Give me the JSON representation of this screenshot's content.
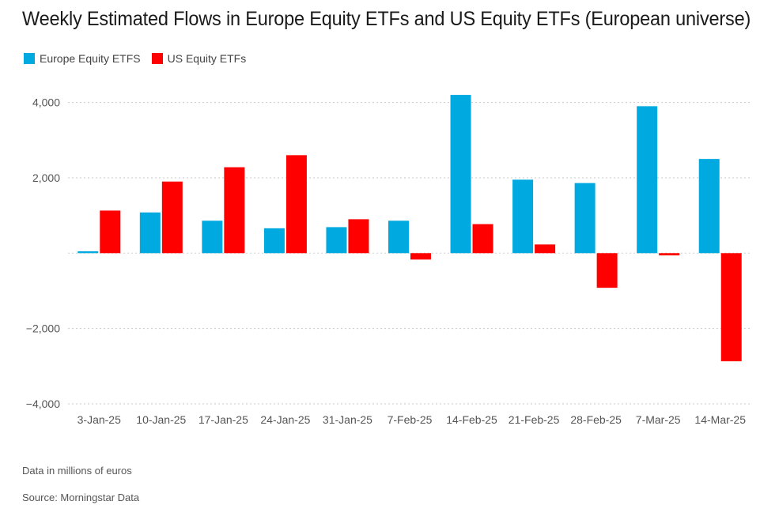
{
  "title": "Weekly Estimated Flows in Europe Equity ETFs and US Equity ETFs (European universe)",
  "legend": [
    {
      "label": "Europe Equity ETFS",
      "color": "#00a9e0"
    },
    {
      "label": "US Equity ETFs",
      "color": "#ff0000"
    }
  ],
  "notes": {
    "units": "Data in millions of euros",
    "source": "Source: Morningstar Data"
  },
  "chart_data": {
    "type": "bar",
    "categories": [
      "3-Jan-25",
      "10-Jan-25",
      "17-Jan-25",
      "24-Jan-25",
      "31-Jan-25",
      "7-Feb-25",
      "14-Feb-25",
      "21-Feb-25",
      "28-Feb-25",
      "7-Mar-25",
      "14-Mar-25"
    ],
    "series": [
      {
        "name": "Europe Equity ETFS",
        "color": "#00a9e0",
        "values": [
          50,
          1080,
          860,
          660,
          690,
          860,
          4200,
          1950,
          1860,
          3900,
          2500
        ]
      },
      {
        "name": "US Equity ETFs",
        "color": "#ff0000",
        "values": [
          1130,
          1900,
          2280,
          2600,
          900,
          -170,
          770,
          230,
          -920,
          -60,
          -2870
        ]
      }
    ],
    "ylim": [
      -4000,
      4600
    ],
    "yticks": [
      4000,
      2000,
      -2000,
      -4000
    ],
    "ytick_labels": [
      "4,000",
      "2,000",
      "−2,000",
      "−4,000"
    ],
    "grid": true,
    "legend_position": "top-left",
    "xlabel": "",
    "ylabel": ""
  }
}
